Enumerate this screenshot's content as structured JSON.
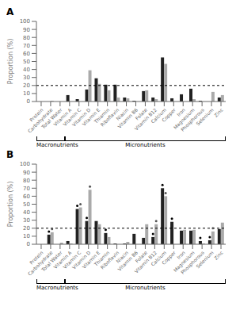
{
  "chart_data": [
    {
      "type": "bar",
      "title": "A",
      "categories": [
        "Protein",
        "Carbohydrate",
        "Total Water",
        "Vitamin A",
        "Vitamin C",
        "Vitamin D",
        "Vitamin E",
        "Thiamin",
        "Riboflavin",
        "Niacin",
        "Vitamin B6",
        "Folate",
        "Vitamin B12",
        "Calcium",
        "Copper",
        "Iron",
        "Magnesium",
        "Phosphorous",
        "Selenium",
        "Zinc"
      ],
      "series": [
        {
          "color": "#222222",
          "values": [
            0,
            0,
            0,
            8,
            3,
            15,
            29,
            21,
            21,
            5,
            1,
            13,
            5,
            55,
            4,
            9,
            16,
            1,
            0,
            5
          ]
        },
        {
          "color": "#aaaaaa",
          "values": [
            0,
            1,
            0,
            0,
            0,
            39,
            22,
            14,
            5,
            4,
            0,
            14,
            3,
            47,
            0,
            0,
            3,
            0,
            12,
            8
          ]
        }
      ],
      "ylabel": "Proportion (%)",
      "ylim": [
        0,
        100
      ],
      "yticks": [
        0,
        10,
        20,
        30,
        40,
        50,
        60,
        70,
        80,
        90,
        100
      ],
      "hline": 20,
      "groups": [
        {
          "label": "Macronutrients",
          "size": 3
        },
        {
          "label": "Micronutrients",
          "size": 17
        }
      ],
      "grid": false
    },
    {
      "type": "bar",
      "title": "B",
      "categories": [
        "Protein",
        "Carbohydrate",
        "Total Water",
        "Vitamin A",
        "Vitamin C",
        "Vitamin D",
        "Vitamin E",
        "Thiamin",
        "Riboflavin",
        "Niacin",
        "Vitamin B6",
        "Folate",
        "Vitamin B12",
        "Calcium",
        "Copper",
        "Iron",
        "Magnesium",
        "Phosphorous",
        "Selenium",
        "Zinc"
      ],
      "series": [
        {
          "color": "#222222",
          "values": [
            0,
            12,
            0,
            4,
            44,
            29,
            29,
            14,
            1,
            1,
            13,
            8,
            9,
            70,
            28,
            17,
            17,
            4,
            5,
            19
          ],
          "significant": [
            false,
            true,
            false,
            false,
            true,
            true,
            false,
            true,
            false,
            false,
            false,
            false,
            true,
            true,
            true,
            false,
            false,
            true,
            true,
            false
          ]
        },
        {
          "color": "#aaaaaa",
          "values": [
            0,
            15,
            2,
            1,
            46,
            68,
            25,
            9,
            0,
            3,
            0,
            25,
            25,
            60,
            0,
            18,
            18,
            1,
            16,
            27
          ],
          "significant": [
            false,
            true,
            false,
            false,
            true,
            true,
            false,
            false,
            false,
            false,
            false,
            false,
            true,
            true,
            false,
            false,
            false,
            false,
            true,
            false
          ]
        }
      ],
      "ylabel": "Proportion (%)",
      "ylim": [
        0,
        100
      ],
      "yticks": [
        0,
        10,
        20,
        30,
        40,
        50,
        60,
        70,
        80,
        90,
        100
      ],
      "hline": 20,
      "groups": [
        {
          "label": "Macronutrients",
          "size": 3
        },
        {
          "label": "Micronutrients",
          "size": 17
        }
      ],
      "grid": false
    }
  ]
}
